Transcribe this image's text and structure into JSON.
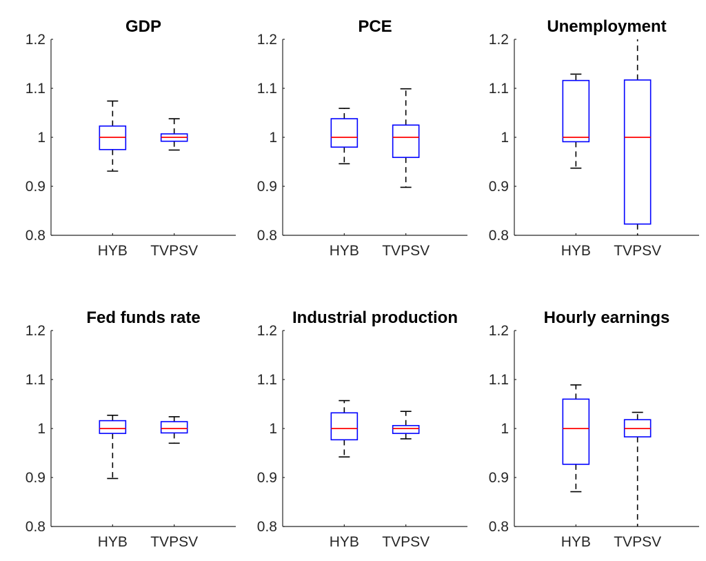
{
  "colors": {
    "box": "#0000ff",
    "median": "#ff0000",
    "whisker": "#000000",
    "axis": "#262626"
  },
  "chart_data": [
    {
      "type": "box",
      "title": "GDP",
      "categories": [
        "HYB",
        "TVPSV"
      ],
      "ylim": [
        0.8,
        1.2
      ],
      "yticks": [
        "0.8",
        "0.9",
        "1",
        "1.1",
        "1.2"
      ],
      "boxes": [
        {
          "name": "HYB",
          "whisker_low": 0.931,
          "q1": 0.975,
          "median": 1.0,
          "q3": 1.023,
          "whisker_high": 1.074
        },
        {
          "name": "TVPSV",
          "whisker_low": 0.974,
          "q1": 0.992,
          "median": 1.0,
          "q3": 1.007,
          "whisker_high": 1.038
        }
      ]
    },
    {
      "type": "box",
      "title": "PCE",
      "categories": [
        "HYB",
        "TVPSV"
      ],
      "ylim": [
        0.8,
        1.2
      ],
      "yticks": [
        "0.8",
        "0.9",
        "1",
        "1.1",
        "1.2"
      ],
      "boxes": [
        {
          "name": "HYB",
          "whisker_low": 0.946,
          "q1": 0.98,
          "median": 1.0,
          "q3": 1.038,
          "whisker_high": 1.059
        },
        {
          "name": "TVPSV",
          "whisker_low": 0.898,
          "q1": 0.959,
          "median": 1.0,
          "q3": 1.025,
          "whisker_high": 1.099
        }
      ]
    },
    {
      "type": "box",
      "title": "Unemployment",
      "categories": [
        "HYB",
        "TVPSV"
      ],
      "ylim": [
        0.8,
        1.2
      ],
      "yticks": [
        "0.8",
        "0.9",
        "1",
        "1.1",
        "1.2"
      ],
      "boxes": [
        {
          "name": "HYB",
          "whisker_low": 0.937,
          "q1": 0.991,
          "median": 1.0,
          "q3": 1.116,
          "whisker_high": 1.129
        },
        {
          "name": "TVPSV",
          "whisker_low": 0.8,
          "q1": 0.823,
          "median": 1.0,
          "q3": 1.117,
          "whisker_high": 1.2
        }
      ]
    },
    {
      "type": "box",
      "title": "Fed funds rate",
      "categories": [
        "HYB",
        "TVPSV"
      ],
      "ylim": [
        0.8,
        1.2
      ],
      "yticks": [
        "0.8",
        "0.9",
        "1",
        "1.1",
        "1.2"
      ],
      "boxes": [
        {
          "name": "HYB",
          "whisker_low": 0.898,
          "q1": 0.99,
          "median": 1.0,
          "q3": 1.016,
          "whisker_high": 1.027
        },
        {
          "name": "TVPSV",
          "whisker_low": 0.97,
          "q1": 0.991,
          "median": 1.0,
          "q3": 1.014,
          "whisker_high": 1.024
        }
      ]
    },
    {
      "type": "box",
      "title": "Industrial production",
      "categories": [
        "HYB",
        "TVPSV"
      ],
      "ylim": [
        0.8,
        1.2
      ],
      "yticks": [
        "0.8",
        "0.9",
        "1",
        "1.1",
        "1.2"
      ],
      "boxes": [
        {
          "name": "HYB",
          "whisker_low": 0.942,
          "q1": 0.977,
          "median": 1.0,
          "q3": 1.032,
          "whisker_high": 1.057
        },
        {
          "name": "TVPSV",
          "whisker_low": 0.979,
          "q1": 0.99,
          "median": 1.0,
          "q3": 1.006,
          "whisker_high": 1.035
        }
      ]
    },
    {
      "type": "box",
      "title": "Hourly earnings",
      "categories": [
        "HYB",
        "TVPSV"
      ],
      "ylim": [
        0.8,
        1.2
      ],
      "yticks": [
        "0.8",
        "0.9",
        "1",
        "1.1",
        "1.2"
      ],
      "boxes": [
        {
          "name": "HYB",
          "whisker_low": 0.871,
          "q1": 0.927,
          "median": 1.0,
          "q3": 1.06,
          "whisker_high": 1.089
        },
        {
          "name": "TVPSV",
          "whisker_low": 0.8,
          "q1": 0.983,
          "median": 1.0,
          "q3": 1.018,
          "whisker_high": 1.033
        }
      ]
    }
  ]
}
